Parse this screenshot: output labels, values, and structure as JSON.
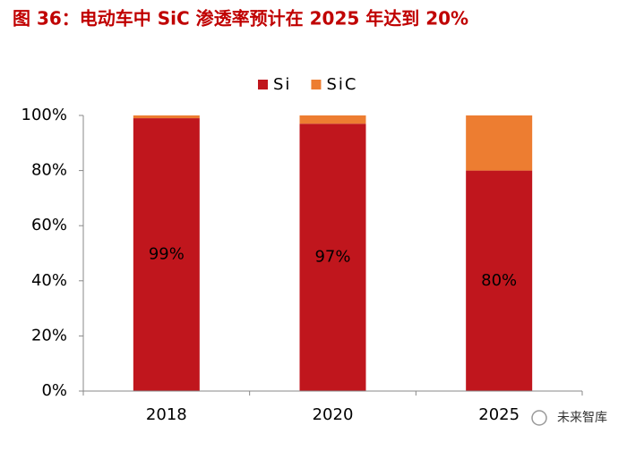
{
  "chart_data": {
    "type": "stacked_bar",
    "title": "图 36：电动车中 SiC 渗透率预计在 2025 年达到 20%",
    "categories": [
      "2018",
      "2020",
      "2025"
    ],
    "series": [
      {
        "name": "Si",
        "color": "#c0161d",
        "values": [
          99,
          97,
          80
        ],
        "value_labels": [
          "99%",
          "97%",
          "80%"
        ]
      },
      {
        "name": "SiC",
        "color": "#ed7d31",
        "values": [
          1,
          3,
          20
        ]
      }
    ],
    "ylim": [
      0,
      100
    ],
    "yticks": [
      {
        "value": 0,
        "label": "0%"
      },
      {
        "value": 20,
        "label": "20%"
      },
      {
        "value": 40,
        "label": "40%"
      },
      {
        "value": 60,
        "label": "60%"
      },
      {
        "value": 80,
        "label": "80%"
      },
      {
        "value": 100,
        "label": "100%"
      }
    ],
    "legend": "top",
    "watermark": "未来智库"
  }
}
